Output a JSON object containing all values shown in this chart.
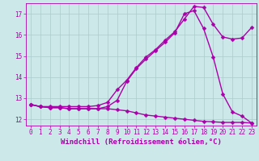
{
  "xlabel": "Windchill (Refroidissement éolien,°C)",
  "background_color": "#cce8e8",
  "grid_color": "#aacccc",
  "line_color": "#aa00aa",
  "xlim": [
    -0.5,
    23.5
  ],
  "ylim": [
    11.7,
    17.5
  ],
  "xticks": [
    0,
    1,
    2,
    3,
    4,
    5,
    6,
    7,
    8,
    9,
    10,
    11,
    12,
    13,
    14,
    15,
    16,
    17,
    18,
    19,
    20,
    21,
    22,
    23
  ],
  "yticks": [
    12,
    13,
    14,
    15,
    16,
    17
  ],
  "line1_x": [
    0,
    1,
    2,
    3,
    4,
    5,
    6,
    7,
    8,
    9,
    10,
    11,
    12,
    13,
    14,
    15,
    16,
    17,
    18,
    19,
    20,
    21,
    22,
    23
  ],
  "line1_y": [
    12.7,
    12.6,
    12.55,
    12.55,
    12.5,
    12.5,
    12.5,
    12.5,
    12.5,
    12.45,
    12.4,
    12.3,
    12.2,
    12.15,
    12.1,
    12.05,
    12.0,
    11.95,
    11.9,
    11.88,
    11.85,
    11.85,
    11.85,
    11.82
  ],
  "line2_x": [
    0,
    1,
    2,
    3,
    4,
    5,
    6,
    7,
    8,
    9,
    10,
    11,
    12,
    13,
    14,
    15,
    16,
    17,
    18,
    19,
    20,
    21,
    22,
    23
  ],
  "line2_y": [
    12.7,
    12.6,
    12.55,
    12.55,
    12.5,
    12.5,
    12.5,
    12.5,
    12.6,
    12.9,
    13.8,
    14.4,
    14.85,
    15.25,
    15.65,
    16.1,
    17.0,
    17.15,
    16.3,
    14.95,
    13.2,
    12.35,
    12.15,
    11.82
  ],
  "line3_x": [
    0,
    1,
    2,
    3,
    4,
    5,
    6,
    7,
    8,
    9,
    10,
    11,
    12,
    13,
    14,
    15,
    16,
    17,
    18,
    19,
    20,
    21,
    22,
    23
  ],
  "line3_y": [
    12.7,
    12.6,
    12.6,
    12.6,
    12.6,
    12.6,
    12.6,
    12.65,
    12.8,
    13.4,
    13.85,
    14.45,
    14.95,
    15.3,
    15.75,
    16.15,
    16.75,
    17.35,
    17.3,
    16.5,
    15.9,
    15.8,
    15.85,
    16.35
  ],
  "marker": "D",
  "markersize": 2.5,
  "linewidth": 1.0,
  "xlabel_fontsize": 6.5,
  "tick_fontsize": 5.5
}
